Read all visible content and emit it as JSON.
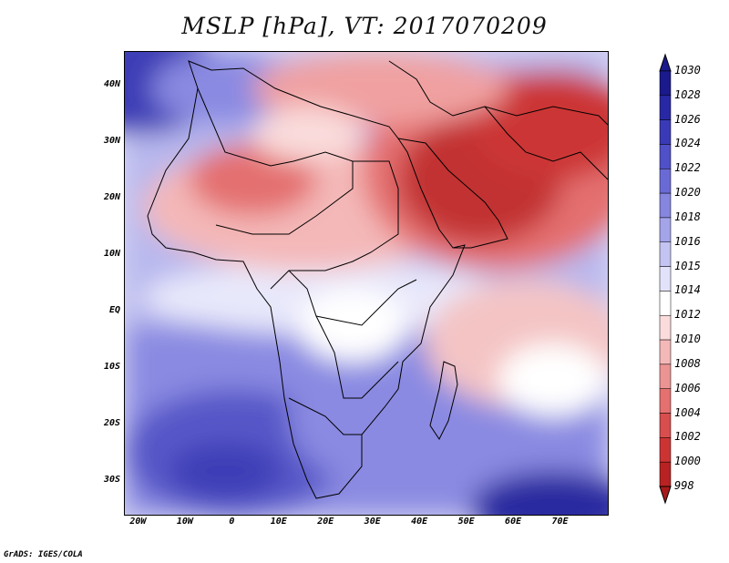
{
  "title": "MSLP [hPa], VT: 2017070209",
  "credit": "GrADS: IGES/COLA",
  "map": {
    "lon_range": [
      -23,
      80
    ],
    "lat_range": [
      -36,
      46
    ],
    "lat_labels": [
      {
        "lat": 40,
        "text": "40N"
      },
      {
        "lat": 30,
        "text": "30N"
      },
      {
        "lat": 20,
        "text": "20N"
      },
      {
        "lat": 10,
        "text": "10N"
      },
      {
        "lat": 0,
        "text": "EQ"
      },
      {
        "lat": -10,
        "text": "10S"
      },
      {
        "lat": -20,
        "text": "20S"
      },
      {
        "lat": -30,
        "text": "30S"
      }
    ],
    "lon_labels": [
      {
        "lon": -20,
        "text": "20W"
      },
      {
        "lon": -10,
        "text": "10W"
      },
      {
        "lon": 0,
        "text": "0"
      },
      {
        "lon": 10,
        "text": "10E"
      },
      {
        "lon": 20,
        "text": "20E"
      },
      {
        "lon": 30,
        "text": "30E"
      },
      {
        "lon": 40,
        "text": "40E"
      },
      {
        "lon": 50,
        "text": "50E"
      },
      {
        "lon": 60,
        "text": "60E"
      },
      {
        "lon": 70,
        "text": "70E"
      }
    ]
  },
  "colorbar": {
    "labels": [
      "1030",
      "1028",
      "1026",
      "1024",
      "1022",
      "1020",
      "1018",
      "1016",
      "1015",
      "1014",
      "1012",
      "1010",
      "1008",
      "1006",
      "1004",
      "1002",
      "1000",
      "998"
    ],
    "colors": [
      "#1a1a8c",
      "#2828a6",
      "#3a3ab8",
      "#5050c8",
      "#6a6ad6",
      "#8686e0",
      "#a4a4ea",
      "#c4c4f2",
      "#e2e2fa",
      "#ffffff",
      "#fadcdc",
      "#f4b8b8",
      "#ec9494",
      "#e47070",
      "#d84e4e",
      "#cc3434",
      "#b82222"
    ]
  },
  "field": {
    "description_colors": {
      "deep_high": "#2a2aa0",
      "high": "#6a6ad6",
      "mid_high": "#b8b8ee",
      "neutral": "#ffffff",
      "mid_low": "#f4b8b8",
      "low": "#e07070",
      "deep_low": "#b82222"
    }
  }
}
